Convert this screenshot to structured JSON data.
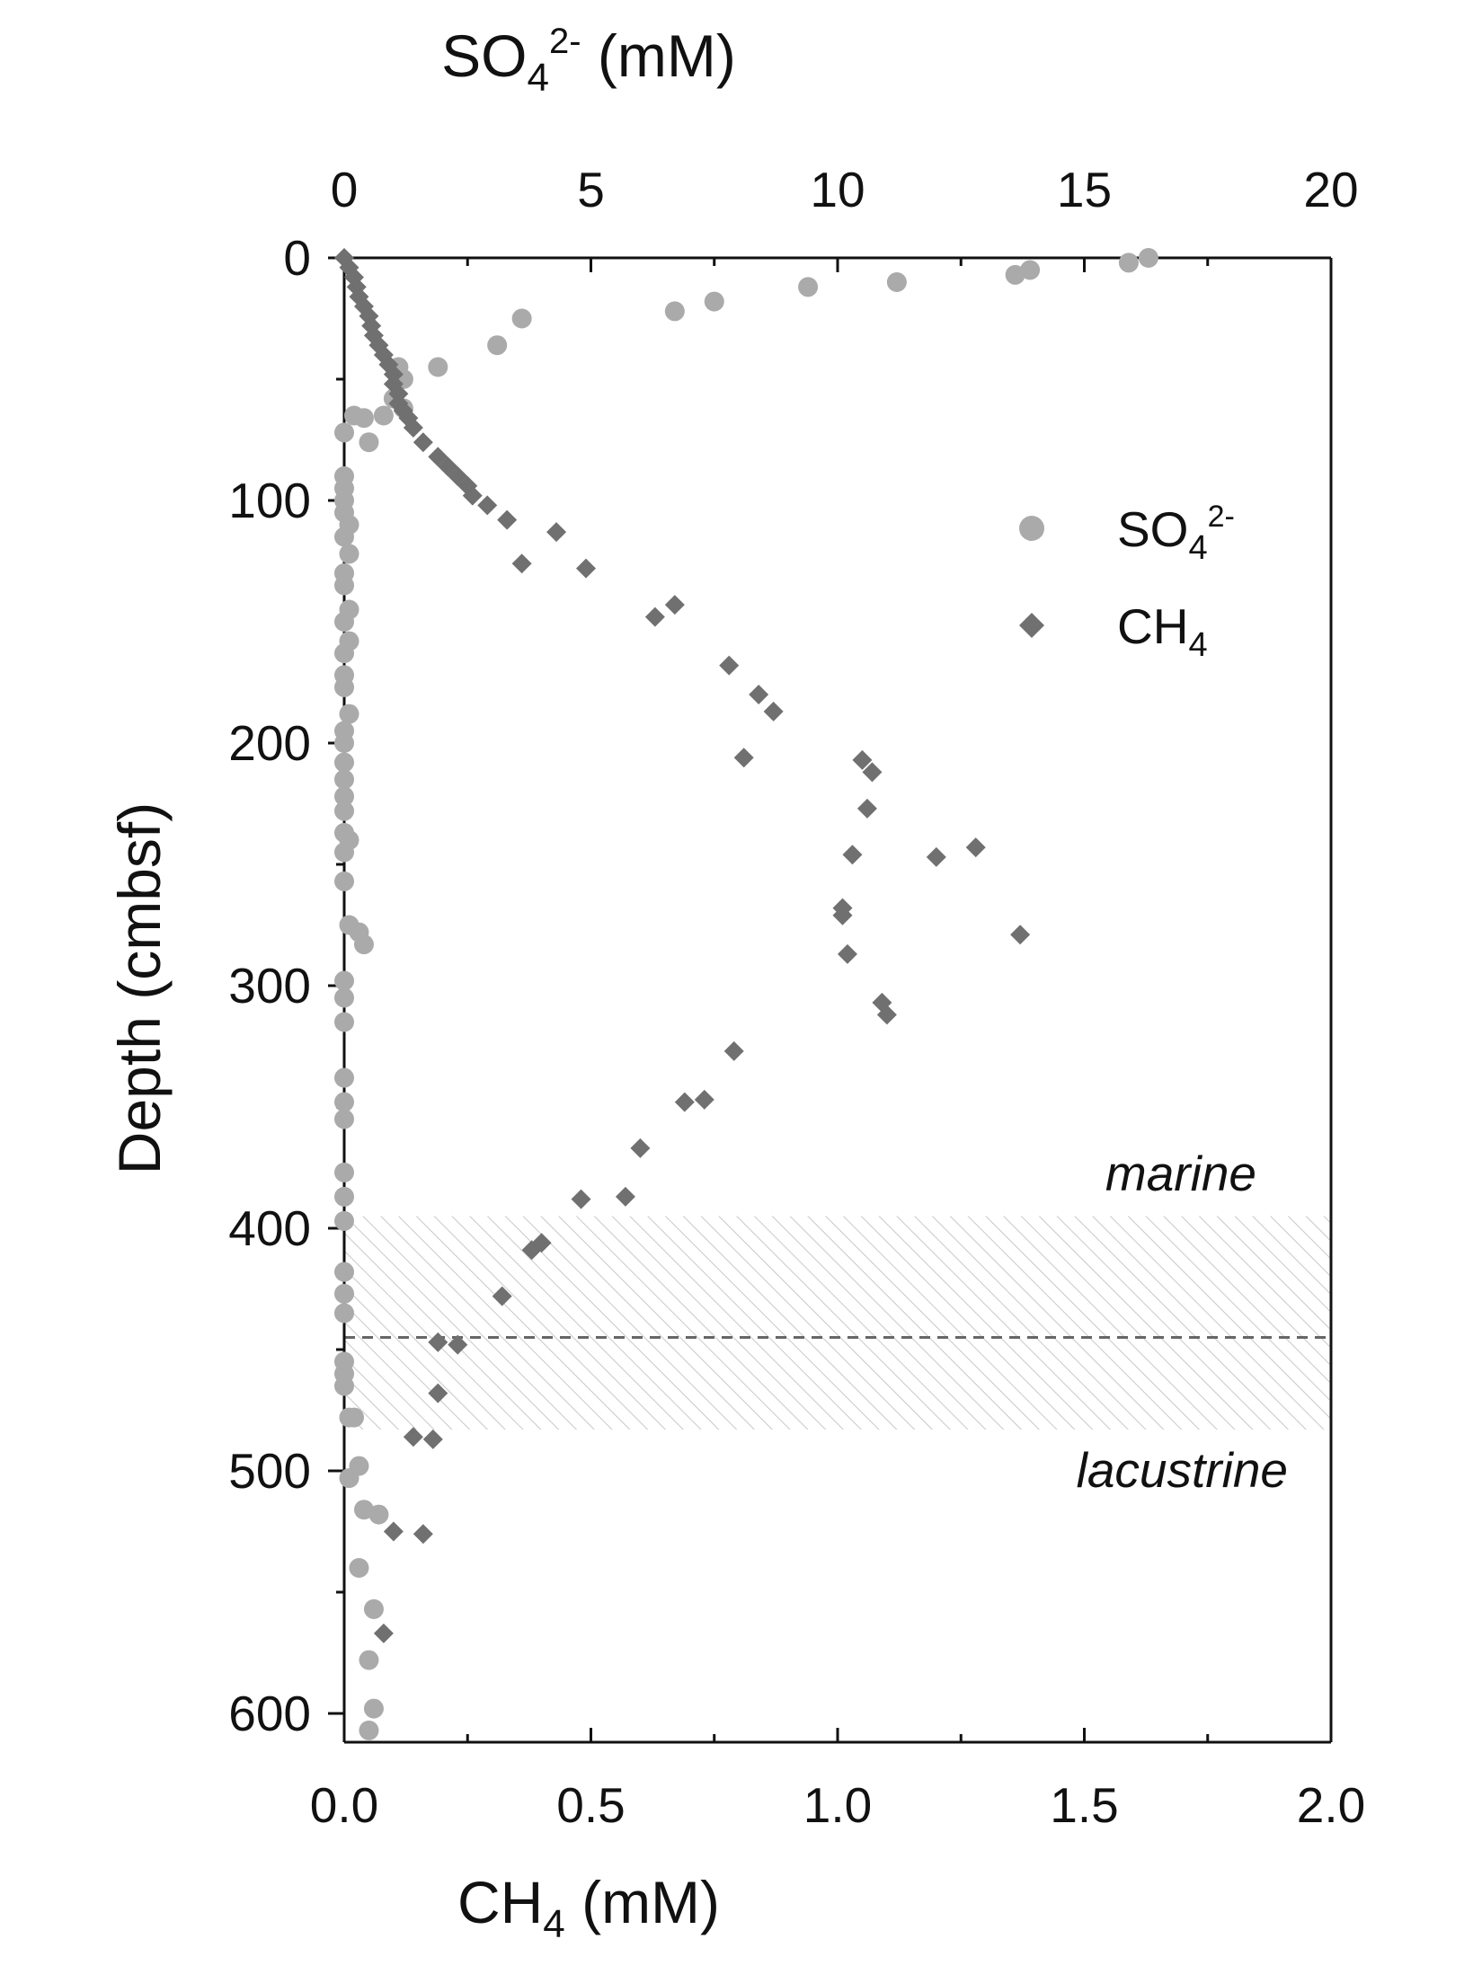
{
  "chart_data": {
    "type": "scatter",
    "x_axes": {
      "top": {
        "title": "SO",
        "title_sub": "4",
        "title_sup": "2-",
        "title_unit": " (mM)",
        "range": [
          0,
          20
        ],
        "ticks": [
          0,
          5,
          10,
          15,
          20
        ],
        "tick_labels": [
          "0",
          "5",
          "10",
          "15",
          "20"
        ]
      },
      "bottom": {
        "title": "CH",
        "title_sub": "4",
        "title_unit": " (mM)",
        "range": [
          0,
          2
        ],
        "ticks": [
          0,
          0.5,
          1.0,
          1.5,
          2.0
        ],
        "tick_labels": [
          "0.0",
          "0.5",
          "1.0",
          "1.5",
          "2.0"
        ]
      }
    },
    "y_axis": {
      "title": "Depth (cmbsf)",
      "range": [
        0,
        610
      ],
      "inverted": true,
      "ticks": [
        0,
        100,
        200,
        300,
        400,
        500,
        600
      ],
      "tick_labels": [
        "0",
        "100",
        "200",
        "300",
        "400",
        "500",
        "600"
      ]
    },
    "legend": {
      "placement": "top-right",
      "entries": [
        {
          "series": "so4",
          "label": "SO",
          "sub": "4",
          "sup": "2-"
        },
        {
          "series": "ch4",
          "label": "CH",
          "sub": "4",
          "sup": ""
        }
      ]
    },
    "annotations": {
      "marine": "marine",
      "lacustrine": "lacustrine",
      "transition_band": [
        395,
        483
      ],
      "boundary_depth": 445
    },
    "series": [
      {
        "key": "so4",
        "name": "SO4 2-",
        "axis": "top",
        "marker": "circle",
        "color": "#aaaaaa",
        "points": [
          [
            16.3,
            0
          ],
          [
            15.9,
            2
          ],
          [
            13.9,
            5
          ],
          [
            13.6,
            7
          ],
          [
            11.2,
            10
          ],
          [
            9.4,
            12
          ],
          [
            7.5,
            18
          ],
          [
            6.7,
            22
          ],
          [
            3.6,
            25
          ],
          [
            3.1,
            36
          ],
          [
            1.9,
            45
          ],
          [
            1.1,
            45
          ],
          [
            1.2,
            50
          ],
          [
            1.0,
            58
          ],
          [
            1.2,
            62
          ],
          [
            0.8,
            65
          ],
          [
            0.2,
            65
          ],
          [
            0.4,
            66
          ],
          [
            0.0,
            72
          ],
          [
            0.5,
            76
          ],
          [
            0.0,
            90
          ],
          [
            0.0,
            95
          ],
          [
            0.0,
            100
          ],
          [
            0.0,
            105
          ],
          [
            0.1,
            110
          ],
          [
            0.0,
            115
          ],
          [
            0.1,
            122
          ],
          [
            0.0,
            130
          ],
          [
            0.0,
            135
          ],
          [
            0.1,
            145
          ],
          [
            0.0,
            150
          ],
          [
            0.1,
            158
          ],
          [
            0.0,
            163
          ],
          [
            0.0,
            172
          ],
          [
            0.0,
            177
          ],
          [
            0.1,
            188
          ],
          [
            0.0,
            195
          ],
          [
            0.0,
            200
          ],
          [
            0.0,
            208
          ],
          [
            0.0,
            215
          ],
          [
            0.0,
            222
          ],
          [
            0.0,
            228
          ],
          [
            0.0,
            237
          ],
          [
            0.1,
            240
          ],
          [
            0.0,
            245
          ],
          [
            0.0,
            257
          ],
          [
            0.1,
            275
          ],
          [
            0.3,
            278
          ],
          [
            0.4,
            283
          ],
          [
            0.0,
            298
          ],
          [
            0.0,
            305
          ],
          [
            0.0,
            315
          ],
          [
            0.0,
            338
          ],
          [
            0.0,
            348
          ],
          [
            0.0,
            355
          ],
          [
            0.0,
            377
          ],
          [
            0.0,
            387
          ],
          [
            0.0,
            397
          ],
          [
            0.0,
            418
          ],
          [
            0.0,
            427
          ],
          [
            0.0,
            435
          ],
          [
            0.0,
            455
          ],
          [
            0.0,
            460
          ],
          [
            0.0,
            465
          ],
          [
            0.1,
            478
          ],
          [
            0.2,
            478
          ],
          [
            0.3,
            498
          ],
          [
            0.1,
            503
          ],
          [
            0.4,
            516
          ],
          [
            0.7,
            518
          ],
          [
            0.3,
            540
          ],
          [
            0.6,
            557
          ],
          [
            0.5,
            578
          ],
          [
            0.6,
            598
          ],
          [
            0.5,
            607
          ]
        ]
      },
      {
        "key": "ch4",
        "name": "CH4",
        "axis": "bottom",
        "marker": "diamond",
        "color": "#707070",
        "points": [
          [
            0.0,
            0
          ],
          [
            0.01,
            4
          ],
          [
            0.02,
            8
          ],
          [
            0.025,
            12
          ],
          [
            0.03,
            16
          ],
          [
            0.04,
            20
          ],
          [
            0.05,
            24
          ],
          [
            0.055,
            28
          ],
          [
            0.06,
            32
          ],
          [
            0.07,
            36
          ],
          [
            0.08,
            40
          ],
          [
            0.09,
            44
          ],
          [
            0.1,
            48
          ],
          [
            0.1,
            52
          ],
          [
            0.11,
            56
          ],
          [
            0.11,
            60
          ],
          [
            0.12,
            63
          ],
          [
            0.13,
            66
          ],
          [
            0.14,
            70
          ],
          [
            0.16,
            76
          ],
          [
            0.19,
            82
          ],
          [
            0.21,
            86
          ],
          [
            0.23,
            90
          ],
          [
            0.25,
            94
          ],
          [
            0.26,
            98
          ],
          [
            0.29,
            102
          ],
          [
            0.33,
            108
          ],
          [
            0.43,
            113
          ],
          [
            0.36,
            126
          ],
          [
            0.49,
            128
          ],
          [
            0.67,
            143
          ],
          [
            0.63,
            148
          ],
          [
            0.78,
            168
          ],
          [
            0.84,
            180
          ],
          [
            0.87,
            187
          ],
          [
            0.81,
            206
          ],
          [
            1.05,
            207
          ],
          [
            1.07,
            212
          ],
          [
            1.06,
            227
          ],
          [
            1.28,
            243
          ],
          [
            1.03,
            246
          ],
          [
            1.2,
            247
          ],
          [
            1.01,
            268
          ],
          [
            1.01,
            271
          ],
          [
            1.37,
            279
          ],
          [
            1.02,
            287
          ],
          [
            1.09,
            307
          ],
          [
            1.1,
            312
          ],
          [
            0.79,
            327
          ],
          [
            0.73,
            347
          ],
          [
            0.69,
            348
          ],
          [
            0.6,
            367
          ],
          [
            0.57,
            387
          ],
          [
            0.48,
            388
          ],
          [
            0.4,
            406
          ],
          [
            0.38,
            409
          ],
          [
            0.32,
            428
          ],
          [
            0.19,
            447
          ],
          [
            0.23,
            448
          ],
          [
            0.19,
            468
          ],
          [
            0.14,
            486
          ],
          [
            0.18,
            487
          ],
          [
            0.1,
            525
          ],
          [
            0.16,
            526
          ],
          [
            0.08,
            567
          ]
        ]
      }
    ]
  }
}
